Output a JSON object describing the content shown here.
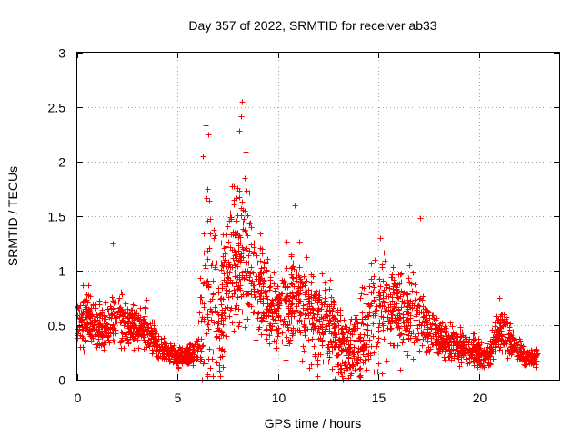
{
  "chart_data": {
    "type": "scatter",
    "title": "Day 357 of 2022, SRMTID for receiver ab33",
    "xlabel": "GPS time / hours",
    "ylabel": "SRMTID / TECUs",
    "xlim": [
      0,
      24
    ],
    "ylim": [
      0,
      3
    ],
    "x_ticks": [
      0,
      5,
      10,
      15,
      20
    ],
    "x_tick_labels": [
      "0",
      "5",
      "10",
      "15",
      "20"
    ],
    "y_ticks": [
      0,
      0.5,
      1,
      1.5,
      2,
      2.5,
      3
    ],
    "y_tick_labels": [
      "0",
      "0.5",
      "1",
      "1.5",
      "2",
      "2.5",
      "3"
    ],
    "grid": true,
    "marker": "plus",
    "color": "#ff0000",
    "series": [
      {
        "name": "SRMTID",
        "profile_x": [
          0.0,
          0.5,
          1.0,
          1.5,
          2.0,
          2.5,
          3.0,
          3.5,
          4.0,
          4.5,
          5.0,
          5.5,
          6.0,
          6.2,
          6.5,
          7.0,
          7.5,
          8.0,
          8.3,
          8.7,
          9.0,
          9.5,
          10.0,
          10.5,
          11.0,
          11.5,
          12.0,
          12.5,
          13.0,
          13.5,
          14.0,
          14.5,
          15.0,
          15.5,
          16.0,
          16.5,
          17.0,
          17.5,
          18.0,
          18.5,
          19.0,
          19.5,
          20.0,
          20.5,
          21.0,
          21.5,
          22.0,
          22.5,
          22.9
        ],
        "profile_mean": [
          0.5,
          0.6,
          0.45,
          0.5,
          0.55,
          0.5,
          0.5,
          0.45,
          0.3,
          0.25,
          0.22,
          0.22,
          0.25,
          0.5,
          0.9,
          0.5,
          1.0,
          1.1,
          1.2,
          1.05,
          0.9,
          0.7,
          0.65,
          0.75,
          0.7,
          0.6,
          0.55,
          0.5,
          0.35,
          0.25,
          0.35,
          0.5,
          0.65,
          0.7,
          0.65,
          0.6,
          0.55,
          0.5,
          0.4,
          0.35,
          0.3,
          0.28,
          0.25,
          0.22,
          0.45,
          0.4,
          0.25,
          0.2,
          0.2
        ],
        "profile_spread": [
          0.15,
          0.15,
          0.12,
          0.15,
          0.15,
          0.12,
          0.12,
          0.12,
          0.08,
          0.06,
          0.06,
          0.06,
          0.08,
          0.4,
          0.6,
          0.35,
          0.4,
          0.45,
          0.5,
          0.4,
          0.3,
          0.22,
          0.22,
          0.3,
          0.25,
          0.25,
          0.25,
          0.25,
          0.2,
          0.18,
          0.22,
          0.28,
          0.3,
          0.28,
          0.25,
          0.22,
          0.2,
          0.15,
          0.12,
          0.1,
          0.1,
          0.08,
          0.08,
          0.07,
          0.12,
          0.12,
          0.06,
          0.05,
          0.05
        ],
        "x_start": 0.0,
        "x_end": 22.9,
        "point_count": 2600,
        "peaks": [
          {
            "x": 1.75,
            "y": 1.25
          },
          {
            "x": 6.25,
            "y": 2.05
          },
          {
            "x": 6.4,
            "y": 2.33
          },
          {
            "x": 6.5,
            "y": 2.25
          },
          {
            "x": 8.05,
            "y": 2.28
          },
          {
            "x": 8.15,
            "y": 2.42
          },
          {
            "x": 8.2,
            "y": 2.55
          },
          {
            "x": 10.8,
            "y": 1.6
          },
          {
            "x": 17.05,
            "y": 1.48
          },
          {
            "x": 15.1,
            "y": 1.3
          },
          {
            "x": 21.0,
            "y": 0.75
          }
        ]
      }
    ]
  }
}
